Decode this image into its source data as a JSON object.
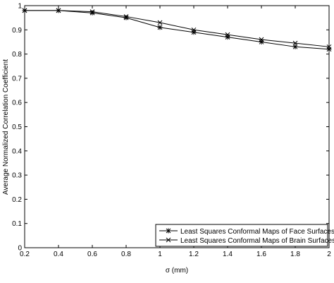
{
  "chart_data": {
    "type": "line",
    "title": "",
    "xlabel": "σ (mm)",
    "ylabel": "Average Normalized Correlation Coefficient",
    "xlim": [
      0.2,
      2
    ],
    "ylim": [
      0,
      1
    ],
    "x_ticks": [
      "0.2",
      "0.4",
      "0.6",
      "0.8",
      "1",
      "1.2",
      "1.4",
      "1.6",
      "1.8",
      "2"
    ],
    "y_ticks": [
      "0",
      "0.1",
      "0.2",
      "0.3",
      "0.4",
      "0.5",
      "0.6",
      "0.7",
      "0.8",
      "0.9",
      "1"
    ],
    "grid": false,
    "legend_position": "bottom-right",
    "x": [
      0.2,
      0.4,
      0.6,
      0.8,
      1.0,
      1.2,
      1.4,
      1.6,
      1.8,
      2.0
    ],
    "series": [
      {
        "name": "Least Squares Conformal Maps of Face Surfaces",
        "marker": "asterisk",
        "values": [
          0.98,
          0.98,
          0.97,
          0.95,
          0.91,
          0.89,
          0.87,
          0.85,
          0.83,
          0.82
        ]
      },
      {
        "name": "Least Squares Conformal Maps of Brain Surfaces",
        "marker": "x",
        "values": [
          0.98,
          0.98,
          0.975,
          0.955,
          0.93,
          0.9,
          0.88,
          0.86,
          0.845,
          0.83
        ]
      }
    ]
  }
}
